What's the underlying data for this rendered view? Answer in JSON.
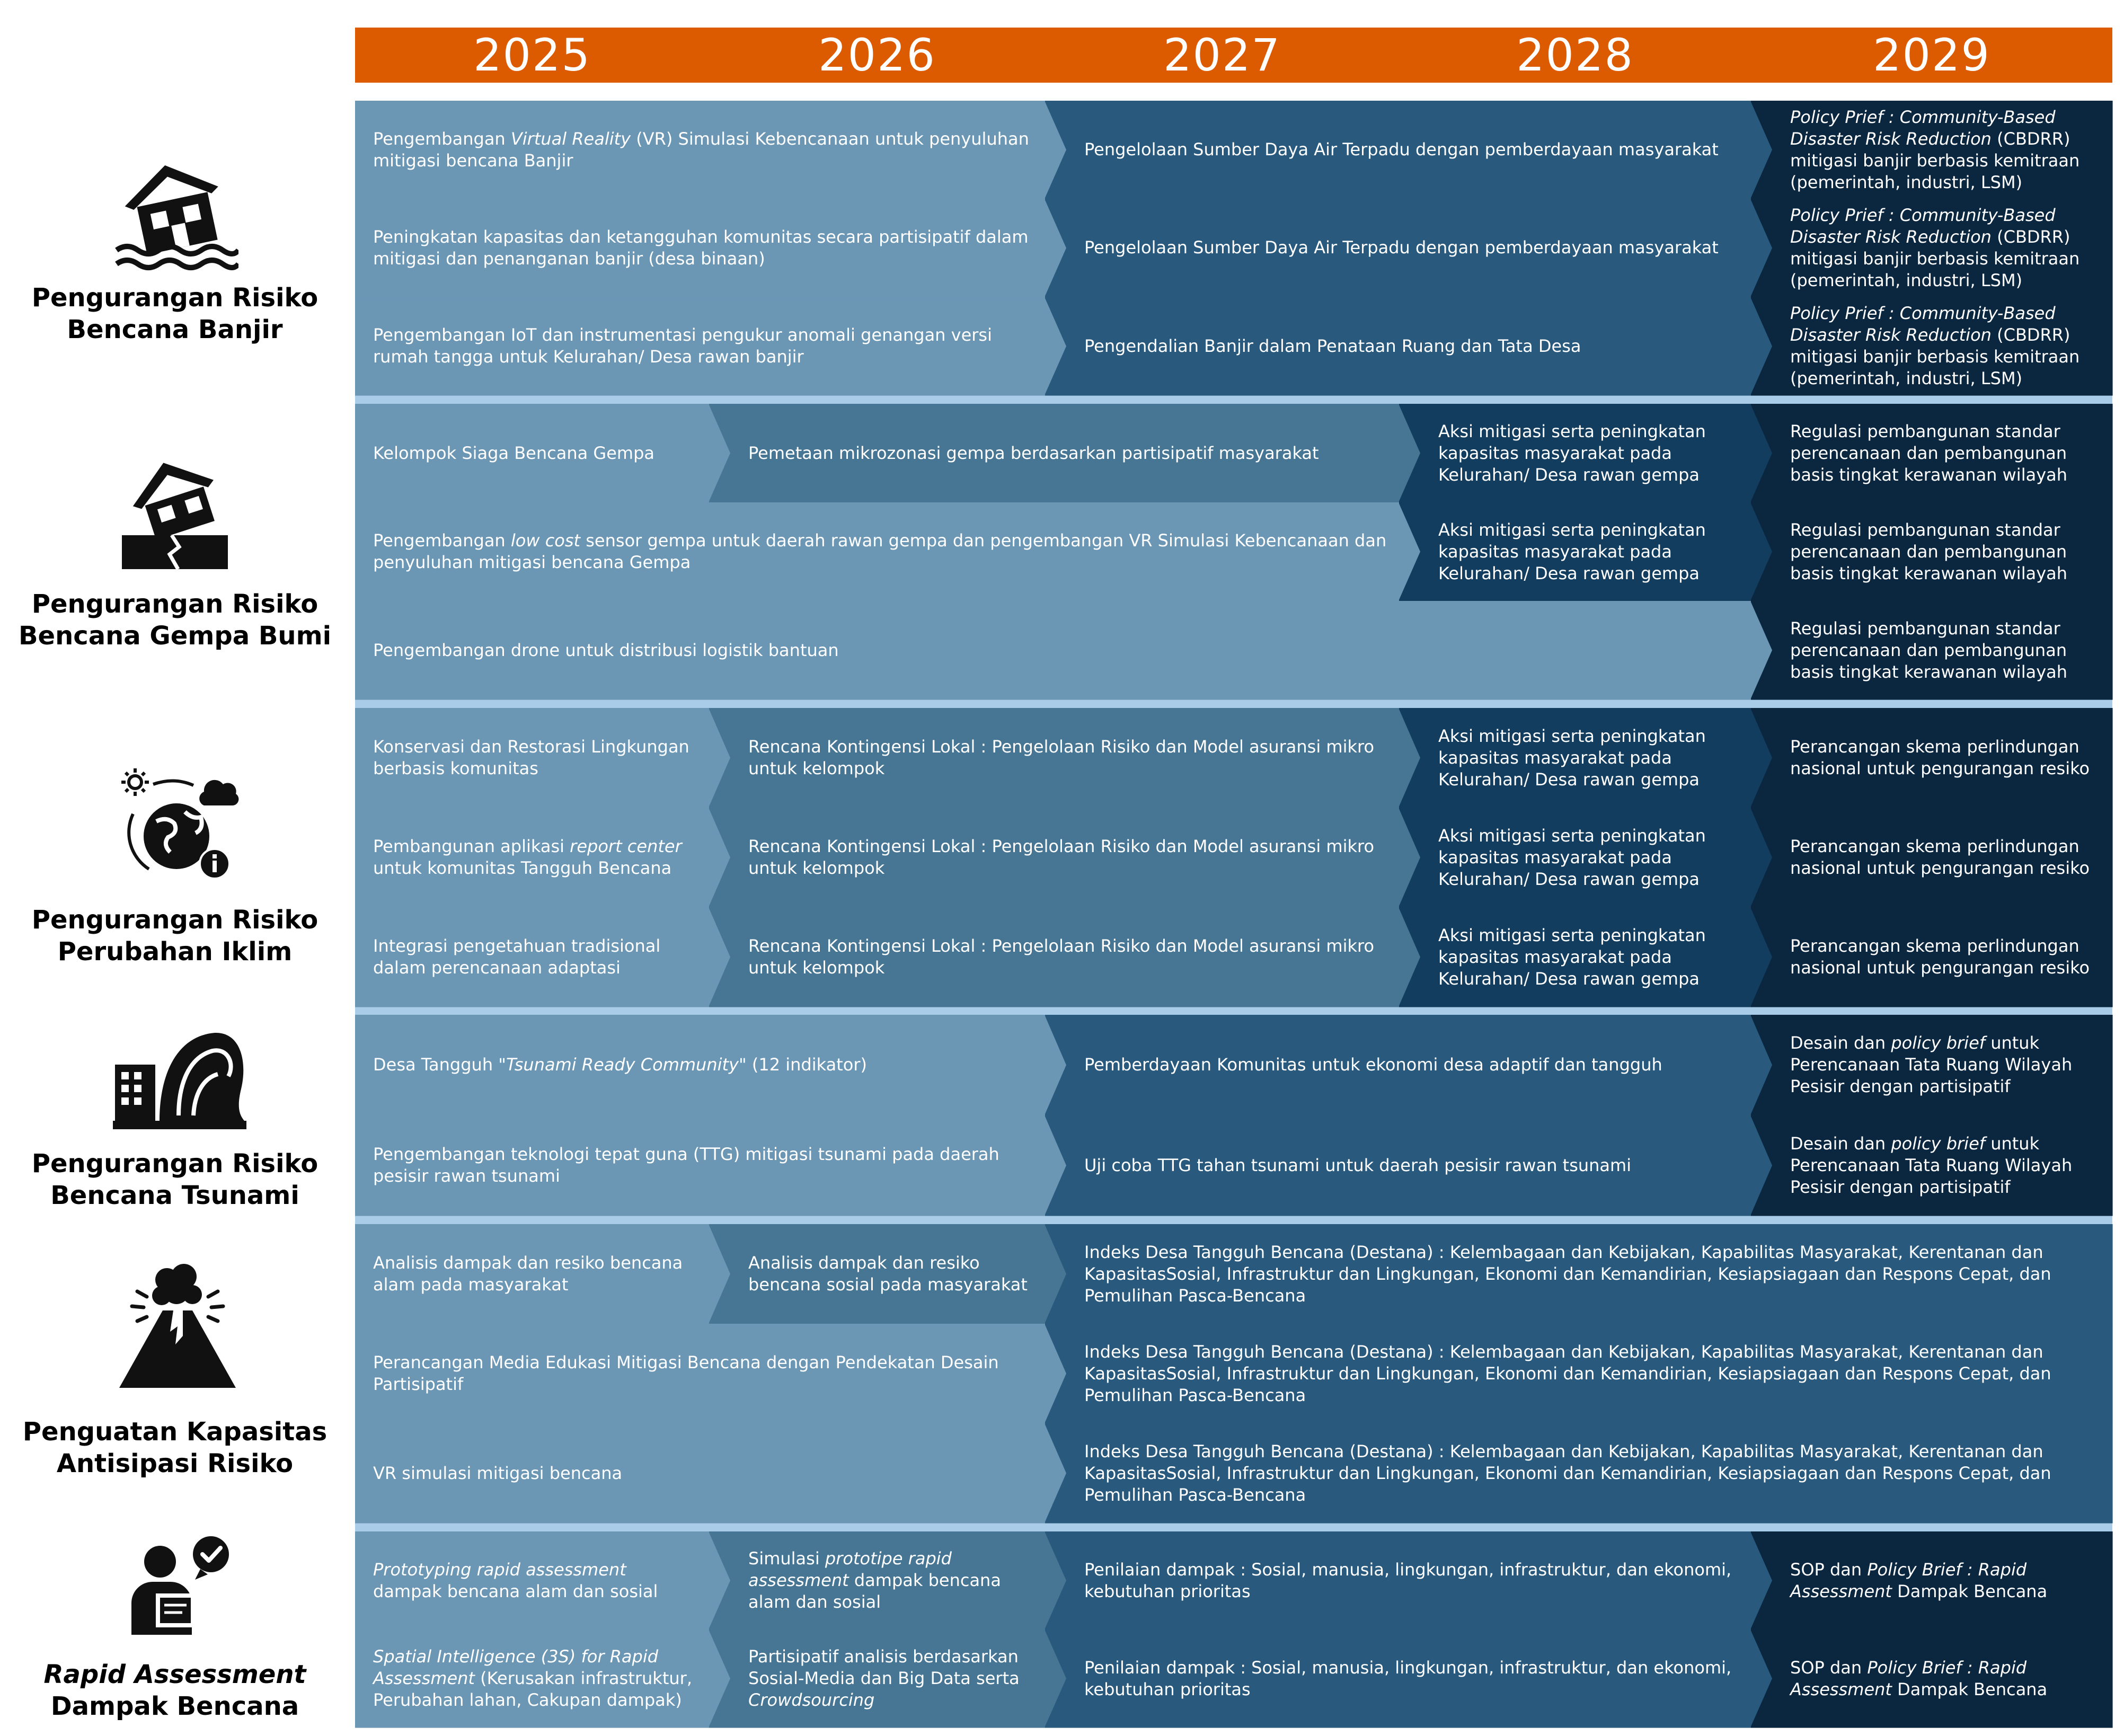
{
  "timeline": {
    "years": [
      "2025",
      "2026",
      "2027",
      "2028",
      "2029"
    ],
    "colors": {
      "header": "#dd5b00",
      "separator": "#a9cde8",
      "light": "#6b97b5",
      "mid": "#477694",
      "dark": "#295a7e",
      "darker": "#123d5e",
      "darkest": "#0b2740",
      "text": "#ffffff"
    }
  },
  "categories": [
    {
      "id": "flood",
      "label_line1": "Pengurangan Risiko",
      "label_line2": "Bencana Banjir",
      "icon": "flooded-house-icon",
      "rows": [
        {
          "cells": [
            {
              "start": 0,
              "end": 2,
              "color": "light",
              "text": "Pengembangan Virtual Reality (VR) Simulasi Kebencanaan untuk penyuluhan mitigasi bencana Banjir",
              "html": "Pengembangan <i>Virtual Reality</i> (VR) Simulasi Kebencanaan untuk penyuluhan mitigasi bencana Banjir"
            },
            {
              "start": 2,
              "end": 4,
              "color": "dark",
              "text": "Pengelolaan Sumber Daya Air Terpadu dengan pemberdayaan masyarakat"
            },
            {
              "start": 4,
              "end": 5,
              "color": "darkest",
              "text": "Policy Prief : Community-Based Disaster Risk Reduction (CBDRR) mitigasi banjir berbasis kemitraan (pemerintah, industri, LSM)",
              "html": "<i>Policy Prief : Community-Based Disaster Risk Reduction</i> (CBDRR) mitigasi banjir berbasis kemitraan (pemerintah, industri, LSM)"
            }
          ]
        },
        {
          "cells": [
            {
              "start": 0,
              "end": 2,
              "color": "light",
              "text": "Peningkatan kapasitas dan ketangguhan komunitas secara partisipatif dalam mitigasi dan penanganan banjir (desa binaan)"
            },
            {
              "start": 2,
              "end": 4,
              "color": "dark",
              "text": "Pengelolaan Sumber Daya Air Terpadu dengan pemberdayaan masyarakat"
            },
            {
              "start": 4,
              "end": 5,
              "color": "darkest",
              "text": "Policy Prief : Community-Based Disaster Risk Reduction (CBDRR) mitigasi banjir berbasis kemitraan (pemerintah, industri, LSM)",
              "html": "<i>Policy Prief : Community-Based Disaster Risk Reduction</i> (CBDRR) mitigasi banjir berbasis kemitraan (pemerintah, industri, LSM)"
            }
          ]
        },
        {
          "cells": [
            {
              "start": 0,
              "end": 2,
              "color": "light",
              "text": "Pengembangan IoT dan instrumentasi pengukur anomali genangan versi rumah tangga untuk Kelurahan/ Desa rawan banjir"
            },
            {
              "start": 2,
              "end": 4,
              "color": "dark",
              "text": "Pengendalian Banjir dalam Penataan Ruang dan Tata Desa"
            },
            {
              "start": 4,
              "end": 5,
              "color": "darkest",
              "text": "Policy Prief : Community-Based Disaster Risk Reduction (CBDRR) mitigasi banjir berbasis kemitraan (pemerintah, industri, LSM)",
              "html": "<i>Policy Prief : Community-Based Disaster Risk Reduction</i> (CBDRR) mitigasi banjir berbasis kemitraan (pemerintah, industri, LSM)"
            }
          ]
        }
      ]
    },
    {
      "id": "earthquake",
      "label_line1": "Pengurangan Risiko",
      "label_line2": "Bencana Gempa Bumi",
      "icon": "earthquake-house-icon",
      "rows": [
        {
          "cells": [
            {
              "start": 0,
              "end": 1,
              "color": "light",
              "text": "Kelompok Siaga Bencana Gempa"
            },
            {
              "start": 1,
              "end": 3,
              "color": "mid",
              "text": "Pemetaan mikrozonasi gempa berdasarkan partisipatif masyarakat"
            },
            {
              "start": 3,
              "end": 4,
              "color": "darker",
              "text": "Aksi mitigasi serta peningkatan kapasitas masyarakat pada Kelurahan/ Desa rawan gempa"
            },
            {
              "start": 4,
              "end": 5,
              "color": "darkest",
              "text": "Regulasi pembangunan standar perencanaan dan pembangunan basis tingkat kerawanan wilayah"
            }
          ]
        },
        {
          "cells": [
            {
              "start": 0,
              "end": 3,
              "color": "light",
              "text": "Pengembangan low cost sensor gempa untuk daerah rawan gempa dan pengembangan VR Simulasi Kebencanaan dan penyuluhan mitigasi bencana Gempa",
              "html": "Pengembangan <i>low cost</i> sensor gempa untuk daerah rawan gempa dan pengembangan VR Simulasi Kebencanaan dan penyuluhan mitigasi bencana Gempa"
            },
            {
              "start": 3,
              "end": 4,
              "color": "darker",
              "text": "Aksi mitigasi serta peningkatan kapasitas masyarakat pada Kelurahan/ Desa rawan gempa"
            },
            {
              "start": 4,
              "end": 5,
              "color": "darkest",
              "text": "Regulasi pembangunan standar perencanaan dan pembangunan basis tingkat kerawanan wilayah"
            }
          ]
        },
        {
          "cells": [
            {
              "start": 0,
              "end": 4,
              "color": "light",
              "text": "Pengembangan drone untuk distribusi logistik bantuan"
            },
            {
              "start": 4,
              "end": 5,
              "color": "darkest",
              "text": "Regulasi pembangunan standar perencanaan dan pembangunan basis tingkat kerawanan wilayah"
            }
          ]
        }
      ]
    },
    {
      "id": "climate",
      "label_line1": "Pengurangan Risiko",
      "label_line2": "Perubahan Iklim",
      "icon": "climate-change-globe-icon",
      "rows": [
        {
          "cells": [
            {
              "start": 0,
              "end": 1,
              "color": "light",
              "text": "Konservasi dan Restorasi Lingkungan berbasis komunitas"
            },
            {
              "start": 1,
              "end": 3,
              "color": "mid",
              "text": "Rencana Kontingensi Lokal : Pengelolaan Risiko dan Model asuransi mikro untuk kelompok"
            },
            {
              "start": 3,
              "end": 4,
              "color": "darker",
              "text": "Aksi mitigasi serta peningkatan kapasitas masyarakat pada Kelurahan/ Desa rawan gempa"
            },
            {
              "start": 4,
              "end": 5,
              "color": "darkest",
              "text": "Perancangan skema perlindungan nasional untuk pengurangan resiko"
            }
          ]
        },
        {
          "cells": [
            {
              "start": 0,
              "end": 1,
              "color": "light",
              "text": "Pembangunan aplikasi report center untuk komunitas Tangguh Bencana",
              "html": "Pembangunan aplikasi <i>report center</i> untuk komunitas Tangguh Bencana"
            },
            {
              "start": 1,
              "end": 3,
              "color": "mid",
              "text": "Rencana Kontingensi Lokal : Pengelolaan Risiko dan Model asuransi mikro untuk kelompok"
            },
            {
              "start": 3,
              "end": 4,
              "color": "darker",
              "text": "Aksi mitigasi serta peningkatan kapasitas masyarakat pada Kelurahan/ Desa rawan gempa"
            },
            {
              "start": 4,
              "end": 5,
              "color": "darkest",
              "text": "Perancangan skema perlindungan nasional untuk pengurangan resiko"
            }
          ]
        },
        {
          "cells": [
            {
              "start": 0,
              "end": 1,
              "color": "light",
              "text": "Integrasi pengetahuan tradisional dalam perencanaan adaptasi"
            },
            {
              "start": 1,
              "end": 3,
              "color": "mid",
              "text": "Rencana Kontingensi Lokal : Pengelolaan Risiko dan Model asuransi mikro untuk kelompok"
            },
            {
              "start": 3,
              "end": 4,
              "color": "darker",
              "text": "Aksi mitigasi serta peningkatan kapasitas masyarakat pada Kelurahan/ Desa rawan gempa"
            },
            {
              "start": 4,
              "end": 5,
              "color": "darkest",
              "text": "Perancangan skema perlindungan nasional untuk pengurangan resiko"
            }
          ]
        }
      ]
    },
    {
      "id": "tsunami",
      "label_line1": "Pengurangan Risiko",
      "label_line2": "Bencana Tsunami",
      "icon": "tsunami-wave-icon",
      "rows": [
        {
          "cells": [
            {
              "start": 0,
              "end": 2,
              "color": "light",
              "text": "Desa Tangguh \"Tsunami Ready Community\" (12 indikator)",
              "html": "Desa Tangguh \"<i>Tsunami Ready Community</i>\" (12 indikator)"
            },
            {
              "start": 2,
              "end": 4,
              "color": "dark",
              "text": "Pemberdayaan Komunitas untuk ekonomi desa adaptif dan tangguh"
            },
            {
              "start": 4,
              "end": 5,
              "color": "darkest",
              "text": "Desain dan policy brief untuk Perencanaan Tata Ruang Wilayah Pesisir dengan partisipatif",
              "html": "Desain dan <i>policy brief</i> untuk Perencanaan Tata Ruang Wilayah Pesisir dengan partisipatif"
            }
          ]
        },
        {
          "cells": [
            {
              "start": 0,
              "end": 2,
              "color": "light",
              "text": "Pengembangan teknologi tepat guna (TTG) mitigasi tsunami pada daerah pesisir rawan tsunami"
            },
            {
              "start": 2,
              "end": 4,
              "color": "dark",
              "text": "Uji coba TTG tahan tsunami untuk daerah pesisir rawan tsunami"
            },
            {
              "start": 4,
              "end": 5,
              "color": "darkest",
              "text": "Desain dan policy brief untuk Perencanaan Tata Ruang Wilayah Pesisir dengan partisipatif",
              "html": "Desain dan <i>policy brief</i> untuk Perencanaan Tata Ruang Wilayah Pesisir dengan partisipatif"
            }
          ]
        }
      ]
    },
    {
      "id": "capacity",
      "label_line1": "Penguatan Kapasitas",
      "label_line2": "Antisipasi Risiko",
      "icon": "volcano-eruption-icon",
      "rows": [
        {
          "cells": [
            {
              "start": 0,
              "end": 1,
              "color": "light",
              "text": "Analisis dampak dan resiko bencana alam pada masyarakat"
            },
            {
              "start": 1,
              "end": 2,
              "color": "mid",
              "text": "Analisis dampak dan resiko bencana sosial pada masyarakat"
            },
            {
              "start": 2,
              "end": 5,
              "color": "dark",
              "text": "Indeks Desa Tangguh Bencana (Destana) : Kelembagaan dan Kebijakan, Kapabilitas Masyarakat, Kerentanan dan KapasitasSosial, Infrastruktur dan Lingkungan, Ekonomi dan Kemandirian, Kesiapsiagaan dan Respons Cepat, dan Pemulihan Pasca-Bencana"
            }
          ]
        },
        {
          "cells": [
            {
              "start": 0,
              "end": 2,
              "color": "light",
              "text": "Perancangan Media Edukasi Mitigasi Bencana dengan Pendekatan Desain Partisipatif"
            },
            {
              "start": 2,
              "end": 5,
              "color": "dark",
              "text": "Indeks Desa Tangguh Bencana (Destana) : Kelembagaan dan Kebijakan, Kapabilitas Masyarakat, Kerentanan dan KapasitasSosial, Infrastruktur dan Lingkungan, Ekonomi dan Kemandirian, Kesiapsiagaan dan Respons Cepat, dan Pemulihan Pasca-Bencana"
            }
          ]
        },
        {
          "cells": [
            {
              "start": 0,
              "end": 2,
              "color": "light",
              "text": "VR simulasi mitigasi bencana"
            },
            {
              "start": 2,
              "end": 5,
              "color": "dark",
              "text": "Indeks Desa Tangguh Bencana (Destana) : Kelembagaan dan Kebijakan, Kapabilitas Masyarakat, Kerentanan dan KapasitasSosial, Infrastruktur dan Lingkungan, Ekonomi dan Kemandirian, Kesiapsiagaan dan Respons Cepat, dan Pemulihan Pasca-Bencana"
            }
          ]
        }
      ]
    },
    {
      "id": "rapid",
      "label_line1": "Rapid Assessment",
      "label_line2": "Dampak Bencana",
      "label_line1_italic": true,
      "icon": "person-assessment-check-icon",
      "rows": [
        {
          "cells": [
            {
              "start": 0,
              "end": 1,
              "color": "light",
              "text": "Prototyping rapid assessment dampak bencana alam dan sosial",
              "html": "<i>Prototyping rapid assessment</i> dampak bencana alam dan sosial"
            },
            {
              "start": 1,
              "end": 2,
              "color": "mid",
              "text": "Simulasi prototipe rapid assessment dampak bencana alam dan sosial",
              "html": "Simulasi <i>prototipe rapid assessment</i> dampak bencana alam dan sosial"
            },
            {
              "start": 2,
              "end": 4,
              "color": "dark",
              "text": "Penilaian dampak : Sosial, manusia, lingkungan, infrastruktur, dan ekonomi, kebutuhan prioritas"
            },
            {
              "start": 4,
              "end": 5,
              "color": "darkest",
              "text": "SOP dan Policy Brief : Rapid Assessment Dampak Bencana",
              "html": "SOP dan <i>Policy Brief : Rapid Assessment</i> Dampak Bencana"
            }
          ]
        },
        {
          "cells": [
            {
              "start": 0,
              "end": 1,
              "color": "light",
              "text": "Spatial Intelligence (3S) for Rapid Assessment (Kerusakan infrastruktur, Perubahan lahan, Cakupan dampak)",
              "html": "<i>Spatial Intelligence (3S) for Rapid Assessment</i> (Kerusakan infrastruktur, Perubahan lahan, Cakupan dampak)"
            },
            {
              "start": 1,
              "end": 2,
              "color": "mid",
              "text": "Partisipatif analisis berdasarkan Sosial-Media dan Big Data serta Crowdsourcing",
              "html": "Partisipatif analisis berdasarkan Sosial-Media dan Big Data serta <i>Crowdsourcing</i>"
            },
            {
              "start": 2,
              "end": 4,
              "color": "dark",
              "text": "Penilaian dampak : Sosial, manusia, lingkungan, infrastruktur, dan ekonomi, kebutuhan prioritas"
            },
            {
              "start": 4,
              "end": 5,
              "color": "darkest",
              "text": "SOP dan Policy Brief : Rapid Assessment Dampak Bencana",
              "html": "SOP dan <i>Policy Brief : Rapid Assessment</i> Dampak Bencana"
            }
          ]
        }
      ]
    }
  ]
}
